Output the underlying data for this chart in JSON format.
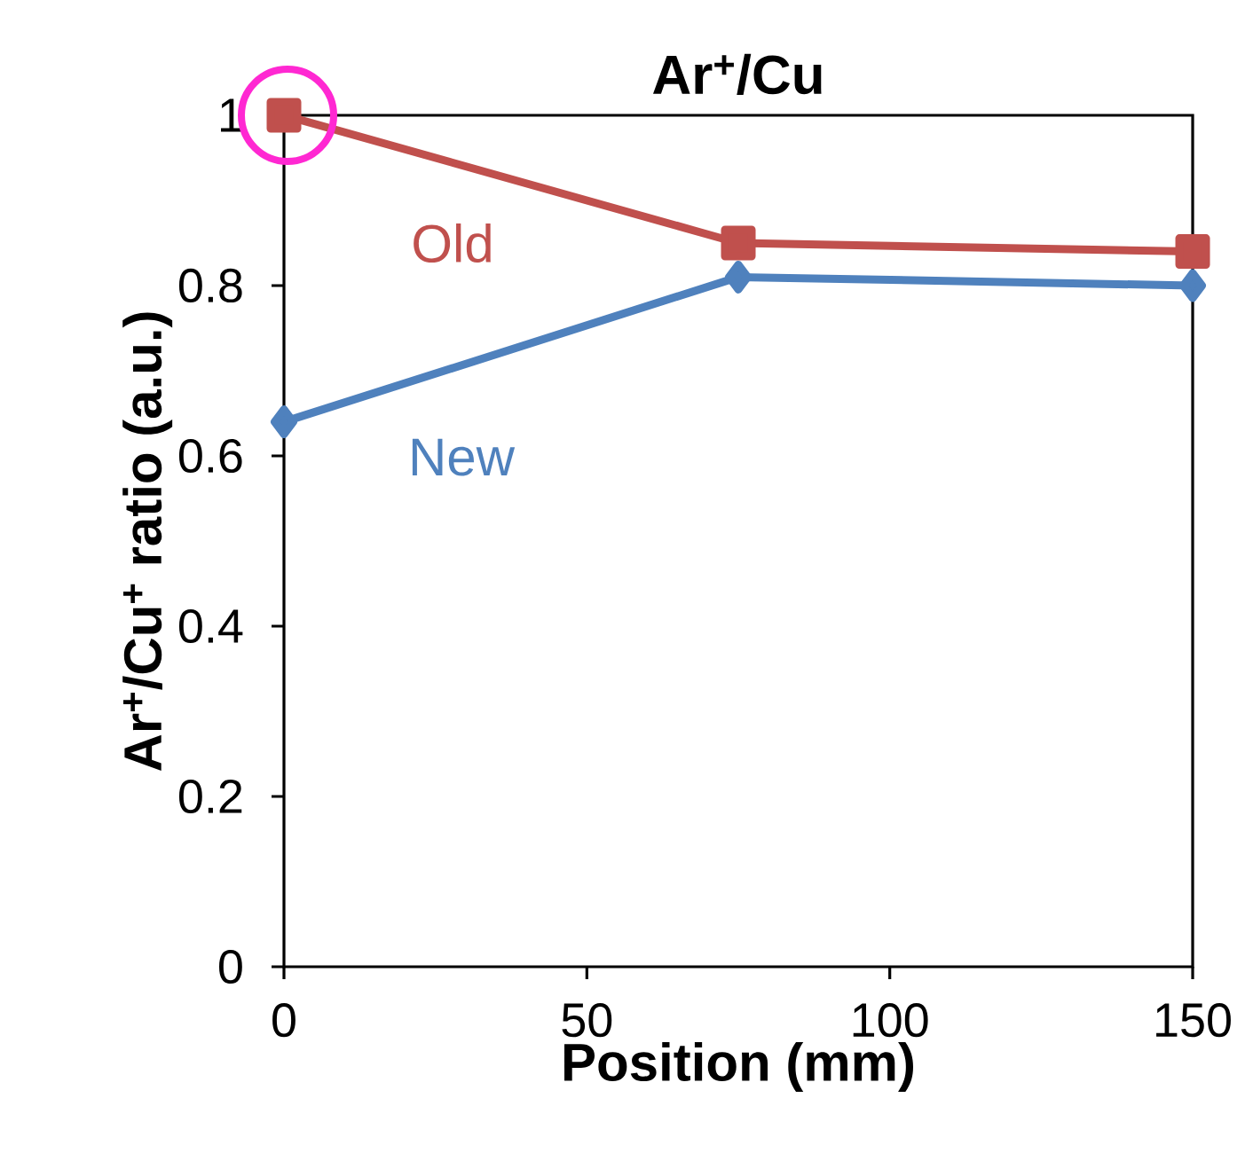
{
  "chart_data": {
    "type": "line",
    "title": "Ar$^{+}$/Cu",
    "xlabel": "Position (mm)",
    "ylabel": "Ar$^{+}$/Cu$^{+}$ ratio (a.u.)",
    "x": [
      0,
      75,
      150
    ],
    "series": [
      {
        "name": "Old",
        "color": "#c0504d",
        "values": [
          1,
          0.85,
          0.84
        ],
        "marker": "square"
      },
      {
        "name": "New",
        "color": "#4f81bd",
        "values": [
          0.64,
          0.81,
          0.8
        ],
        "marker": "diamond"
      }
    ],
    "xlim": [
      0,
      150
    ],
    "ylim": [
      0,
      1
    ],
    "xticks": [
      0,
      50,
      100,
      150
    ],
    "yticks": [
      0,
      0.2,
      0.4,
      0.6,
      0.8,
      1
    ],
    "grid": false,
    "legend": false,
    "line_style": "solid"
  }
}
